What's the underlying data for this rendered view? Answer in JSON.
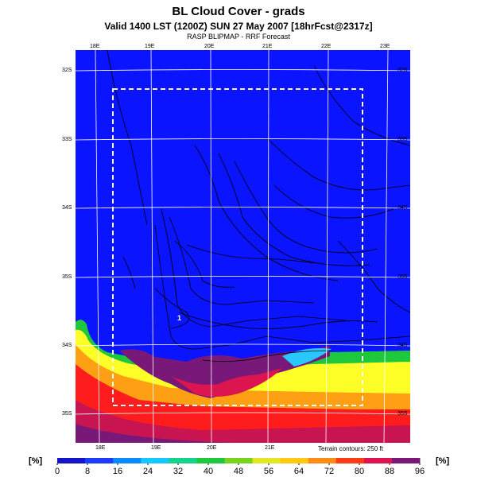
{
  "header": {
    "title": "BL Cloud Cover - grads",
    "subtitle": "Valid 1400 LST (1200Z) SUN 27 May 2007 [18hrFcst@2317z]",
    "source": "RASP BLIPMAP - RRF Forecast"
  },
  "map": {
    "lon_labels_top": [
      "18E",
      "19E",
      "20E",
      "21E",
      "22E",
      "23E"
    ],
    "lon_labels_bottom": [
      "18E",
      "19E",
      "20E",
      "21E"
    ],
    "lat_labels_left": [
      "32S",
      "33S",
      "34S",
      "35S",
      "34S",
      "35S"
    ],
    "lat_labels_right": [
      "32S",
      "33S",
      "34S",
      "35S",
      "34S",
      "35S"
    ],
    "contour_label": "1",
    "terrain_note": "Terrain contours: 250 ft",
    "colors": {
      "ocean_clear": "#0a14ff",
      "low": "#1e46ff",
      "mid_green": "#1cc63c",
      "high_yellow": "#ffff28",
      "high_red": "#ff1c1c",
      "max_purple": "#781878"
    }
  },
  "colorbar": {
    "unit_left": "[%]",
    "unit_right": "[%]",
    "ticks": [
      "0",
      "8",
      "16",
      "24",
      "32",
      "40",
      "48",
      "56",
      "64",
      "72",
      "80",
      "88",
      "96"
    ],
    "colors": [
      "#1414c8",
      "#1e3cff",
      "#0a8cff",
      "#14c8ff",
      "#14d28c",
      "#1ec83c",
      "#78d21e",
      "#e6e628",
      "#ffc814",
      "#ff8c14",
      "#ff3c14",
      "#dc1450",
      "#781878"
    ]
  }
}
